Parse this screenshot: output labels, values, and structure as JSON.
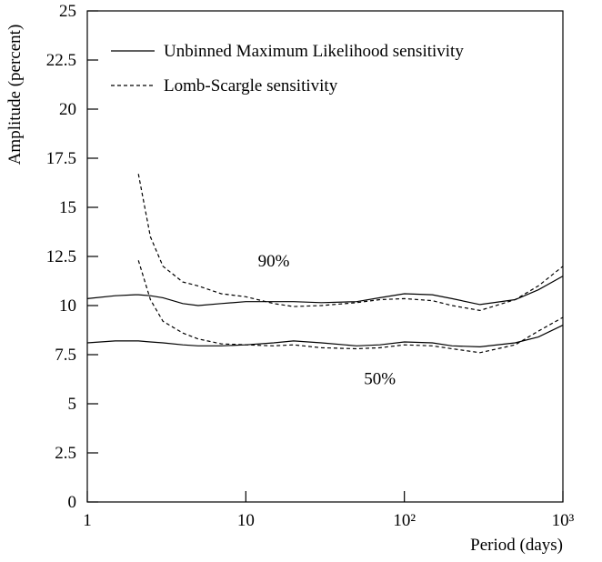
{
  "chart_data": {
    "type": "line",
    "x_label": "Period (days)",
    "y_label": "Amplitude (percent)",
    "x_log": true,
    "xlim": [
      1,
      1000
    ],
    "xticks": [
      1,
      10,
      {
        "value": 100,
        "label": "10²"
      },
      {
        "value": 1000,
        "label": "10³"
      }
    ],
    "ylim": [
      0,
      25
    ],
    "yticks": [
      0,
      2.5,
      5,
      7.5,
      10,
      12.5,
      15,
      17.5,
      20,
      22.5,
      25
    ],
    "x": [
      1,
      1.5,
      2,
      2.1,
      2.5,
      3,
      4,
      5,
      7,
      10,
      15,
      20,
      30,
      50,
      70,
      100,
      150,
      200,
      300,
      500,
      700,
      1000
    ],
    "series": [
      {
        "name": "Unbinned Maximum Likelihood sensitivity",
        "color": "#000000",
        "dash": "solid",
        "values": [
          10.35,
          10.5,
          10.55,
          10.55,
          10.5,
          10.4,
          10.1,
          10.0,
          10.1,
          10.2,
          10.2,
          10.2,
          10.15,
          10.2,
          10.4,
          10.6,
          10.55,
          10.35,
          10.05,
          10.3,
          10.8,
          11.5
        ]
      },
      {
        "color": "#000000",
        "dash": "solid",
        "values": [
          8.1,
          8.2,
          8.2,
          8.2,
          8.15,
          8.1,
          8.0,
          7.95,
          7.95,
          8.0,
          8.1,
          8.2,
          8.1,
          7.95,
          8.0,
          8.15,
          8.1,
          7.95,
          7.9,
          8.1,
          8.4,
          9.0
        ]
      },
      {
        "name": "Lomb-Scargle sensitivity",
        "color": "#000000",
        "dash": "dashed",
        "values": [
          null,
          null,
          null,
          16.7,
          13.5,
          12.0,
          11.2,
          11.0,
          10.6,
          10.45,
          10.1,
          9.95,
          10.0,
          10.15,
          10.3,
          10.35,
          10.25,
          10.0,
          9.75,
          10.3,
          11.0,
          12.0
        ]
      },
      {
        "color": "#000000",
        "dash": "dashed",
        "values": [
          null,
          null,
          null,
          12.3,
          10.3,
          9.2,
          8.6,
          8.3,
          8.05,
          8.0,
          7.95,
          8.0,
          7.85,
          7.8,
          7.85,
          8.0,
          7.95,
          7.8,
          7.6,
          8.0,
          8.7,
          9.4
        ]
      }
    ],
    "annotations": [
      {
        "text": "90%",
        "x": 15,
        "y": 12.0
      },
      {
        "text": "50%",
        "x": 70,
        "y": 6.0
      }
    ],
    "legend": "upper left"
  }
}
